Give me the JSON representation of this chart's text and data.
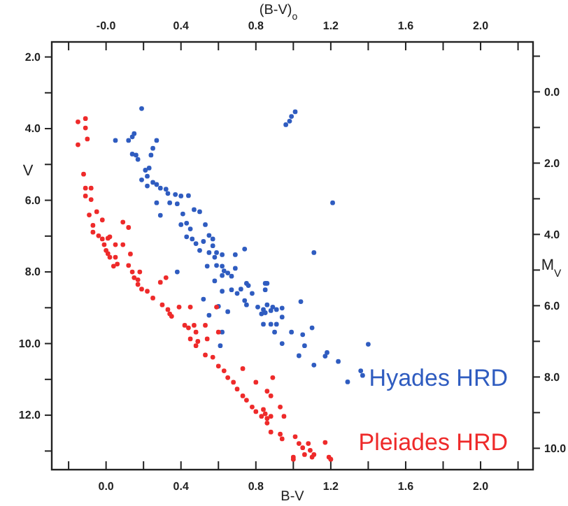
{
  "chart_data": {
    "type": "scatter",
    "xlabel": "B-V",
    "x2label": "(B-V)$_{o}$",
    "ylabel": "V",
    "y2label": "M$_{V}$",
    "xlim": [
      -0.29,
      2.28
    ],
    "x2lim": [
      -0.29,
      2.28
    ],
    "ylim": [
      13.52,
      1.58
    ],
    "y2lim": [
      10.6,
      -1.4
    ],
    "xticks": [
      {
        "value": -0.2,
        "label": null
      },
      {
        "value": 0,
        "label": "0.0"
      },
      {
        "value": 0.2,
        "label": null
      },
      {
        "value": 0.4,
        "label": "0.4"
      },
      {
        "value": 0.6,
        "label": null
      },
      {
        "value": 0.8,
        "label": "0.8"
      },
      {
        "value": 1.0,
        "label": null
      },
      {
        "value": 1.2,
        "label": "1.2"
      },
      {
        "value": 1.4,
        "label": null
      },
      {
        "value": 1.6,
        "label": "1.6"
      },
      {
        "value": 1.8,
        "label": null
      },
      {
        "value": 2.0,
        "label": "2.0"
      },
      {
        "value": 2.2,
        "label": null
      }
    ],
    "x2ticks": [
      {
        "value": -0.2,
        "label": null
      },
      {
        "value": 0,
        "label": "-0.0"
      },
      {
        "value": 0.2,
        "label": null
      },
      {
        "value": 0.4,
        "label": "0.4"
      },
      {
        "value": 0.6,
        "label": null
      },
      {
        "value": 0.8,
        "label": "0.8"
      },
      {
        "value": 1.0,
        "label": null
      },
      {
        "value": 1.2,
        "label": "1.2"
      },
      {
        "value": 1.4,
        "label": null
      },
      {
        "value": 1.6,
        "label": "1.6"
      },
      {
        "value": 1.8,
        "label": null
      },
      {
        "value": 2.0,
        "label": "2.0"
      },
      {
        "value": 2.2,
        "label": null
      }
    ],
    "yticks": [
      {
        "value": 2,
        "label": "2.0"
      },
      {
        "value": 3,
        "label": null
      },
      {
        "value": 4,
        "label": "4.0"
      },
      {
        "value": 5,
        "label": null
      },
      {
        "value": 6,
        "label": "6.0"
      },
      {
        "value": 7,
        "label": null
      },
      {
        "value": 8,
        "label": "8.0"
      },
      {
        "value": 9,
        "label": null
      },
      {
        "value": 10,
        "label": "10.0"
      },
      {
        "value": 11,
        "label": null
      },
      {
        "value": 12,
        "label": "12.0"
      },
      {
        "value": 13,
        "label": null
      }
    ],
    "y2ticks": [
      {
        "value": -1,
        "label": null
      },
      {
        "value": 0,
        "label": "0.0"
      },
      {
        "value": 1,
        "label": null
      },
      {
        "value": 2,
        "label": "2.0"
      },
      {
        "value": 3,
        "label": null
      },
      {
        "value": 4,
        "label": "4.0"
      },
      {
        "value": 5,
        "label": null
      },
      {
        "value": 6,
        "label": "6.0"
      },
      {
        "value": 7,
        "label": null
      },
      {
        "value": 8,
        "label": "8.0"
      },
      {
        "value": 9,
        "label": null
      },
      {
        "value": 10,
        "label": "10.0"
      }
    ],
    "marker": "circle",
    "legend": "bottom right",
    "series": [
      {
        "name": "Hyades HRD",
        "color": "#2f5cc0",
        "x": [
          0.19,
          0.05,
          0.12,
          0.14,
          0.15,
          0.27,
          0.25,
          0.14,
          0.16,
          0.17,
          0.24,
          0.21,
          0.23,
          0.19,
          0.22,
          0.25,
          0.27,
          0.22,
          0.29,
          0.32,
          0.33,
          0.37,
          0.4,
          0.44,
          0.27,
          0.34,
          0.38,
          0.29,
          0.41,
          0.47,
          0.5,
          0.4,
          0.43,
          0.45,
          0.53,
          0.43,
          0.46,
          0.48,
          0.52,
          0.55,
          0.57,
          0.57,
          0.5,
          0.55,
          0.59,
          0.58,
          0.62,
          0.69,
          0.74,
          0.54,
          0.59,
          0.62,
          0.63,
          0.65,
          0.69,
          0.67,
          0.62,
          0.38,
          0.58,
          0.75,
          0.85,
          0.96,
          0.98,
          0.99,
          1.01,
          1.21,
          1.11,
          0.62,
          0.67,
          0.7,
          0.72,
          0.76,
          0.74,
          0.75,
          0.78,
          0.85,
          0.86,
          0.81,
          0.84,
          0.86,
          0.89,
          0.91,
          0.94,
          0.83,
          0.85,
          0.88,
          0.84,
          0.88,
          0.91,
          0.94,
          0.9,
          0.65,
          0.6,
          0.52,
          0.55,
          0.62,
          0.61,
          0.94,
          0.99,
          1.04,
          1.05,
          1.1,
          1.06,
          1.03,
          1.11,
          1.17,
          1.18,
          1.24,
          1.4,
          1.29,
          1.36,
          1.37
        ],
        "values": [
          3.44,
          4.33,
          4.33,
          4.23,
          4.14,
          4.33,
          4.55,
          4.71,
          4.74,
          4.86,
          4.74,
          5.16,
          5.1,
          5.43,
          5.33,
          5.5,
          5.56,
          5.6,
          5.66,
          5.69,
          5.81,
          5.84,
          5.88,
          5.87,
          6.07,
          6.07,
          6.1,
          6.42,
          6.38,
          6.26,
          6.32,
          6.68,
          6.64,
          6.8,
          6.68,
          7.02,
          7.08,
          7.21,
          7.15,
          6.98,
          7.08,
          7.27,
          7.4,
          7.46,
          7.46,
          7.59,
          7.52,
          7.52,
          7.36,
          7.84,
          7.82,
          7.84,
          7.97,
          8.03,
          7.9,
          8.12,
          8.1,
          8.0,
          8.25,
          8.32,
          8.32,
          3.89,
          3.79,
          3.66,
          3.53,
          6.07,
          7.46,
          8.54,
          8.5,
          8.6,
          8.48,
          8.38,
          8.8,
          8.92,
          8.6,
          8.5,
          8.32,
          8.98,
          9.05,
          8.92,
          8.98,
          9.05,
          9.01,
          9.17,
          9.14,
          9.08,
          9.46,
          9.46,
          9.46,
          9.26,
          9.68,
          9.11,
          8.96,
          8.76,
          9.21,
          9.68,
          10.06,
          10.0,
          9.68,
          8.83,
          9.75,
          9.56,
          10.06,
          10.34,
          10.6,
          10.35,
          10.25,
          10.5,
          10.02,
          11.07,
          10.76,
          10.89
        ]
      },
      {
        "name": "Pleiades HRD",
        "color": "#ee2a2a",
        "x": [
          -0.15,
          -0.11,
          -0.11,
          -0.15,
          -0.1,
          -0.12,
          -0.11,
          -0.08,
          -0.11,
          -0.08,
          -0.09,
          -0.05,
          -0.02,
          -0.07,
          -0.07,
          -0.04,
          -0.02,
          0.01,
          0.02,
          -0.01,
          0.0,
          0.01,
          0.02,
          0.04,
          0.06,
          0.05,
          0.09,
          0.12,
          0.05,
          0.09,
          0.13,
          0.12,
          0.14,
          0.18,
          0.15,
          0.17,
          0.32,
          0.29,
          0.17,
          0.19,
          0.22,
          0.25,
          0.3,
          0.33,
          0.35,
          0.34,
          0.39,
          0.45,
          0.42,
          0.44,
          0.47,
          0.48,
          0.45,
          0.49,
          0.48,
          0.53,
          0.54,
          0.53,
          0.57,
          0.6,
          0.63,
          0.65,
          0.68,
          0.7,
          0.73,
          0.75,
          0.78,
          0.8,
          0.83,
          0.86,
          0.6,
          0.59,
          0.73,
          0.8,
          0.89,
          0.86,
          0.88,
          0.85,
          0.88,
          0.84,
          0.93,
          0.95,
          0.86,
          0.88,
          0.93,
          0.94,
          1.01,
          1.03,
          1.08,
          1.09,
          1.11,
          1.17,
          1.19,
          1.0,
          1.05,
          1.0,
          1.06,
          1.1,
          1.2
        ],
        "values": [
          3.81,
          3.72,
          3.98,
          4.45,
          4.29,
          5.27,
          5.66,
          5.66,
          5.88,
          5.98,
          6.41,
          6.32,
          6.55,
          6.7,
          6.89,
          6.99,
          7.08,
          7.06,
          7.02,
          7.24,
          7.4,
          7.49,
          7.59,
          7.84,
          7.78,
          7.59,
          6.61,
          6.76,
          7.24,
          7.24,
          7.5,
          7.82,
          8.0,
          8.0,
          8.16,
          8.22,
          8.16,
          8.29,
          8.35,
          8.48,
          8.54,
          8.73,
          8.92,
          9.05,
          9.24,
          9.17,
          8.98,
          8.98,
          9.49,
          9.56,
          9.49,
          9.68,
          9.87,
          9.94,
          10.06,
          9.49,
          9.87,
          10.32,
          10.38,
          10.63,
          10.76,
          10.95,
          11.08,
          11.27,
          11.46,
          11.58,
          11.77,
          11.9,
          12.03,
          12.09,
          9.68,
          8.98,
          10.7,
          11.08,
          10.95,
          11.33,
          11.46,
          11.96,
          12.03,
          11.84,
          11.77,
          12.03,
          12.22,
          12.47,
          12.53,
          12.66,
          12.6,
          12.79,
          12.79,
          12.98,
          13.1,
          12.76,
          13.17,
          13.17,
          12.91,
          13.23,
          13.1,
          13.17,
          13.23
        ]
      }
    ]
  }
}
